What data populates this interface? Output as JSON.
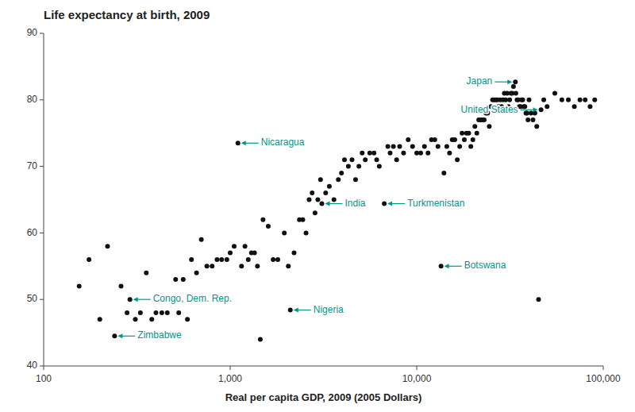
{
  "chart_data": {
    "type": "scatter",
    "title": "Life expectancy at birth, 2009",
    "x_label": "Real per capita GDP, 2009 (2005 Dollars)",
    "log": "x",
    "grid": false,
    "color": "#111111",
    "xlim": [
      100,
      100000
    ],
    "ylim": [
      40,
      90
    ],
    "xticks": [
      100,
      {
        "value": 1000,
        "label": "1,000"
      },
      {
        "value": 10000,
        "label": "10,000"
      },
      {
        "value": 100000,
        "label": "100,000"
      }
    ],
    "yticks": [
      40,
      50,
      60,
      70,
      80,
      90
    ],
    "x": [
      155,
      175,
      200,
      220,
      240,
      260,
      280,
      290,
      310,
      330,
      355,
      380,
      400,
      430,
      460,
      490,
      510,
      530,
      560,
      590,
      620,
      660,
      700,
      750,
      800,
      850,
      900,
      960,
      1000,
      1050,
      1100,
      1150,
      1200,
      1250,
      1300,
      1350,
      1400,
      1450,
      1500,
      1600,
      1700,
      1800,
      1950,
      2050,
      2100,
      2200,
      2350,
      2450,
      2550,
      2650,
      2750,
      2850,
      2950,
      3050,
      3100,
      3250,
      3400,
      3600,
      3800,
      3950,
      4100,
      4300,
      4500,
      4700,
      4900,
      5100,
      5300,
      5600,
      5900,
      6100,
      6300,
      6700,
      7000,
      7200,
      7500,
      7800,
      8100,
      8500,
      9000,
      9500,
      10000,
      10500,
      11000,
      11500,
      12000,
      12500,
      13000,
      13500,
      14000,
      14500,
      15000,
      15500,
      16000,
      16500,
      17000,
      17500,
      18000,
      18500,
      19000,
      19500,
      20000,
      20500,
      21000,
      21500,
      22000,
      22500,
      23000,
      23500,
      24000,
      24500,
      25000,
      25500,
      26000,
      26500,
      27000,
      27500,
      28000,
      28500,
      29000,
      29500,
      30000,
      30500,
      31000,
      31500,
      32000,
      32500,
      33000,
      33800,
      34000,
      34500,
      35000,
      35500,
      36000,
      36500,
      37000,
      37500,
      38000,
      38500,
      39000,
      39500,
      40000,
      41000,
      42000,
      43000,
      44000,
      45000,
      46400,
      48000,
      50000,
      55000,
      60000,
      65000,
      70000,
      75000,
      80000,
      85000,
      90000
    ],
    "values": [
      52,
      56,
      47,
      58,
      44.5,
      52,
      48,
      50,
      47,
      48,
      54,
      47,
      48,
      48,
      48,
      50,
      53,
      48,
      53,
      47,
      56,
      54,
      59,
      55,
      55,
      56,
      56,
      56,
      57,
      58,
      73.5,
      55,
      58,
      56,
      57,
      57,
      55,
      44,
      62,
      61,
      56,
      56,
      60,
      55,
      48.4,
      57,
      62,
      62,
      60,
      65,
      66,
      63,
      65,
      68,
      64.4,
      66,
      67,
      65,
      68,
      69,
      71,
      70,
      71,
      68,
      70,
      72,
      71,
      72,
      72,
      71,
      70,
      64.4,
      73,
      72,
      73,
      71,
      73,
      72,
      74,
      73,
      72,
      72,
      73,
      72,
      74,
      74,
      73,
      55,
      69,
      73,
      72,
      74,
      74,
      71,
      73,
      75,
      74,
      75,
      75,
      73,
      74,
      76,
      75,
      77,
      77,
      77,
      77,
      78,
      78,
      76,
      79,
      80,
      80,
      80,
      80,
      79,
      80,
      79,
      80,
      81,
      80,
      81,
      79,
      80,
      81,
      81,
      82,
      82.7,
      81,
      80,
      80,
      79,
      79,
      80,
      80,
      79,
      79,
      78,
      78,
      77,
      80,
      78,
      77,
      78,
      76,
      50,
      78.5,
      80,
      79,
      81,
      80,
      80,
      79,
      80,
      80,
      79,
      80
    ],
    "annotations": [
      {
        "text": "Japan",
        "x": 33800,
        "y": 82.7,
        "color": "#009688"
      },
      {
        "text": "United States",
        "x": 46400,
        "y": 78.5,
        "color": "#009688"
      },
      {
        "text": "Nicaragua",
        "x": 1100,
        "y": 73.5,
        "color": "#009688"
      },
      {
        "text": "Turkmenistan",
        "x": 6700,
        "y": 64.4,
        "color": "#009688"
      },
      {
        "text": "India",
        "x": 3100,
        "y": 64.4,
        "color": "#009688"
      },
      {
        "text": "Botswana",
        "x": 13500,
        "y": 55.0,
        "color": "#009688"
      },
      {
        "text": "Nigeria",
        "x": 2100,
        "y": 48.4,
        "color": "#009688"
      },
      {
        "text": "Congo, Dem. Rep.",
        "x": 290,
        "y": 50.0,
        "color": "#009688"
      },
      {
        "text": "Zimbabwe",
        "x": 240,
        "y": 44.5,
        "color": "#009688"
      }
    ]
  }
}
